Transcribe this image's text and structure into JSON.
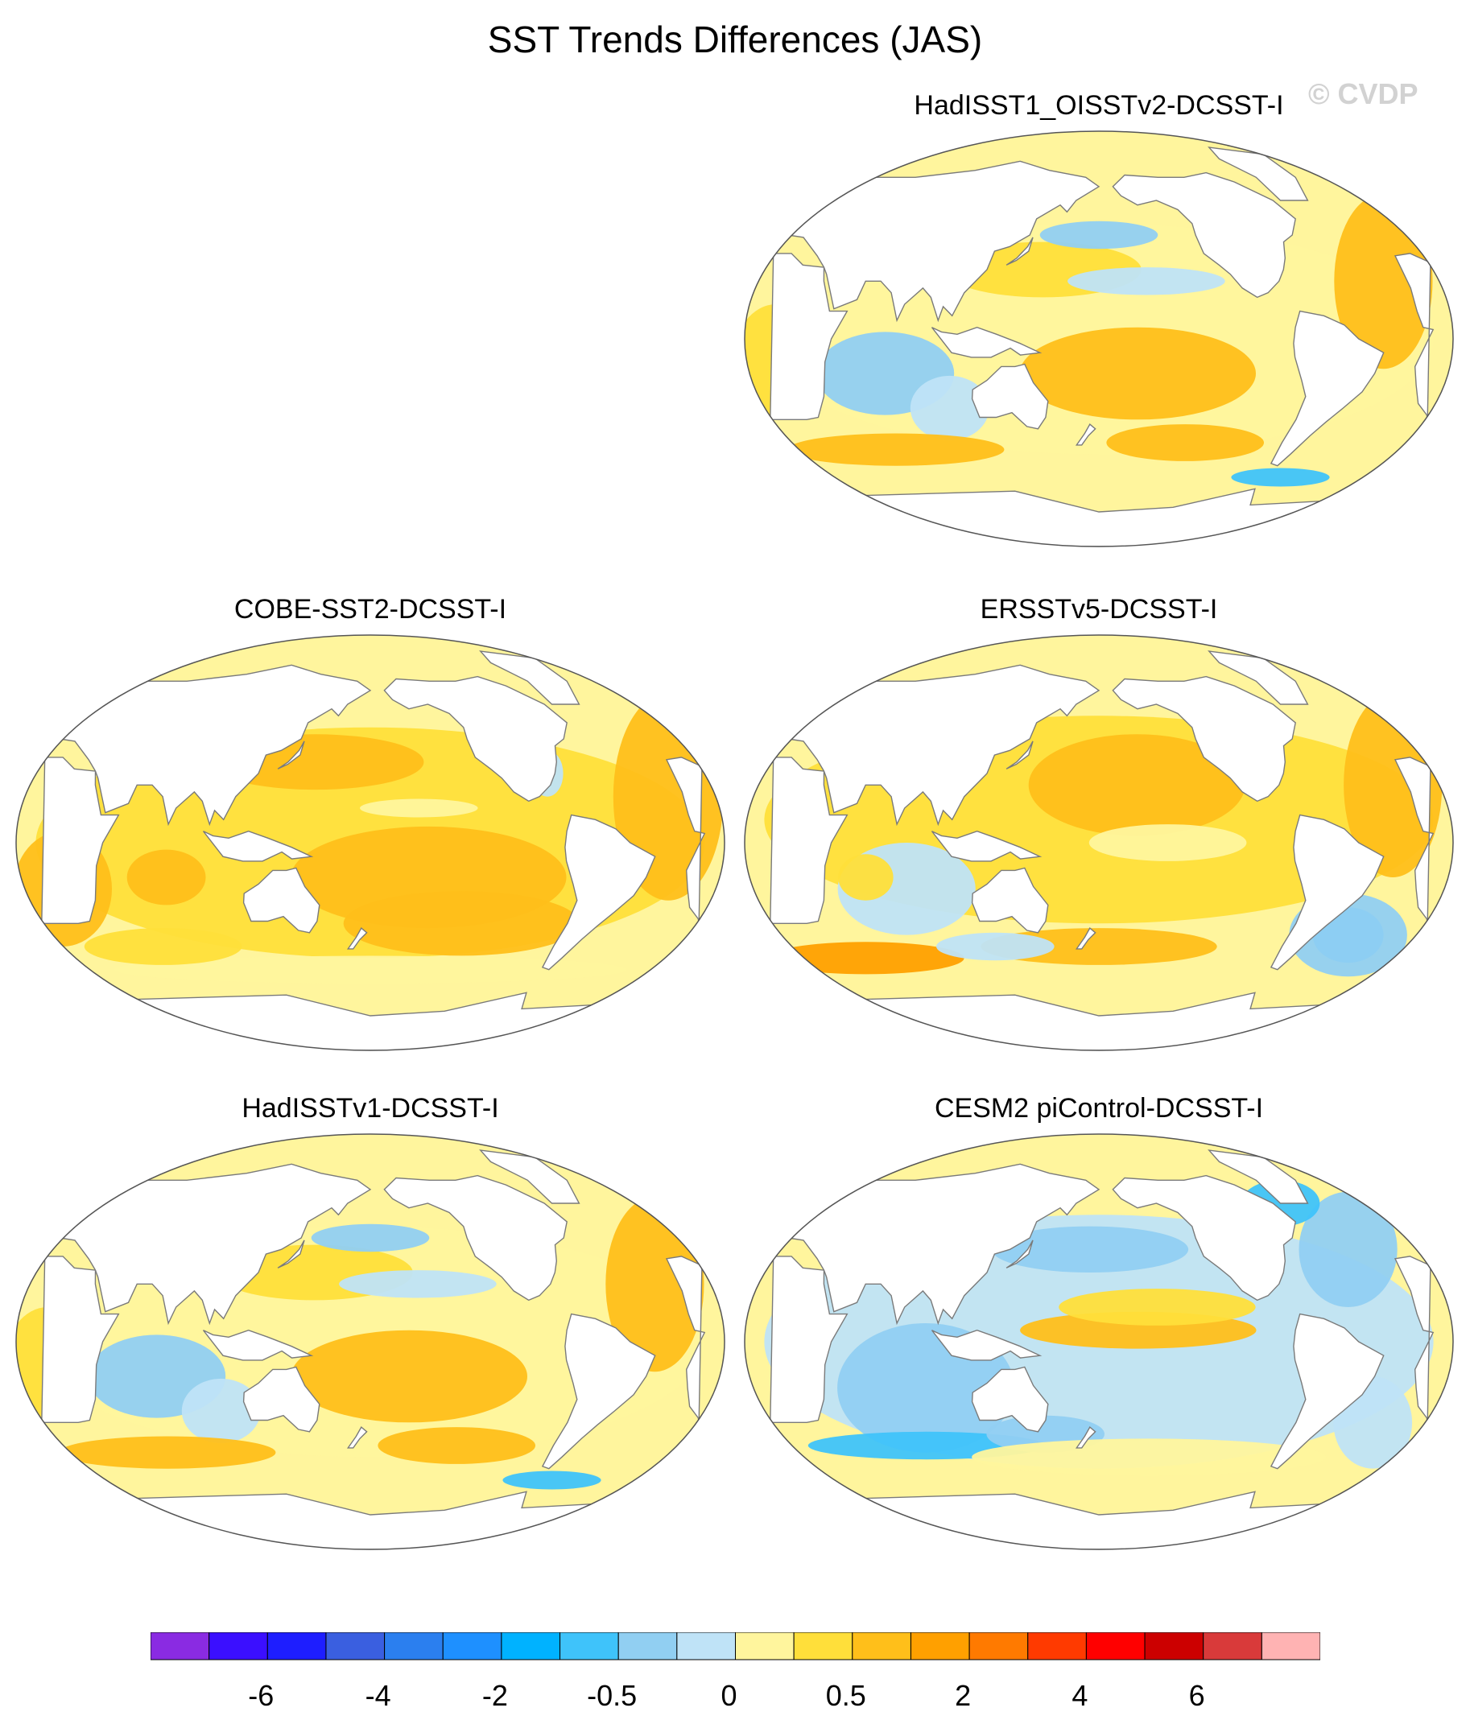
{
  "figure": {
    "title": "SST Trends Differences (JAS)",
    "watermark": "© CVDP"
  },
  "panels": [
    {
      "id": "hadisst1-oisstv2",
      "title": "HadISST1_OISSTv2-DCSST-I",
      "pattern": "mixed",
      "row": 0,
      "col": 1
    },
    {
      "id": "cobe-sst2",
      "title": "COBE-SST2-DCSST-I",
      "pattern": "warm",
      "row": 1,
      "col": 0
    },
    {
      "id": "ersstv5",
      "title": "ERSSTv5-DCSST-I",
      "pattern": "warm-cool-sa",
      "row": 1,
      "col": 1
    },
    {
      "id": "hadisstv1",
      "title": "HadISSTv1-DCSST-I",
      "pattern": "mixed",
      "row": 2,
      "col": 0
    },
    {
      "id": "cesm2-picontrol",
      "title": "CESM2 piControl-DCSST-I",
      "pattern": "cool",
      "row": 2,
      "col": 1
    }
  ],
  "colorbar": {
    "colors": [
      "#8a2be2",
      "#3b0fff",
      "#1e1eff",
      "#3a5fe0",
      "#2b7fef",
      "#1e90ff",
      "#00b2ff",
      "#3fc3fa",
      "#91cff2",
      "#bfe3f7",
      "#fff59d",
      "#ffdf3a",
      "#ffbf1a",
      "#ffa000",
      "#ff7a00",
      "#ff3a00",
      "#ff0000",
      "#cc0000",
      "#d93a3a",
      "#ffb3b3"
    ],
    "labels": [
      "-6",
      "-4",
      "-2",
      "-0.5",
      "0",
      "0.5",
      "2",
      "4",
      "6"
    ],
    "label_boundaries": [
      2,
      4,
      6,
      8,
      10,
      12,
      14,
      16,
      18
    ]
  },
  "palette": {
    "land": "#ffffff",
    "coast": "#7a7a7a",
    "cool_light": "#bfe3f7",
    "cool_mid": "#91cff2",
    "cool_strong": "#3fc3fa",
    "warm_light": "#fff59d",
    "warm_mid": "#ffdf3a",
    "warm_strong": "#ffbf1a",
    "warm_deep": "#ffa000"
  }
}
